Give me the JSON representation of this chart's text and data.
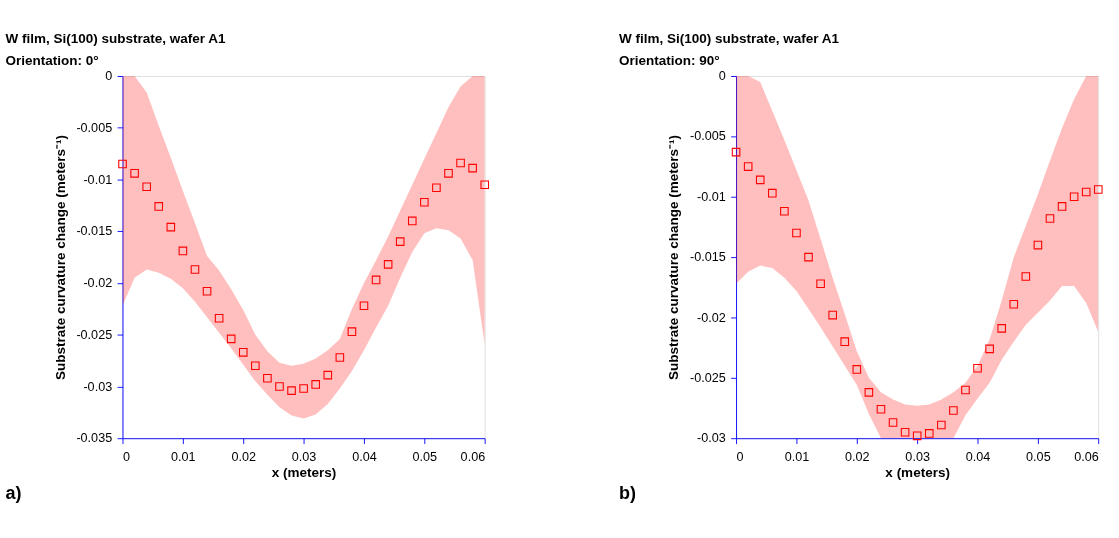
{
  "chart_data": [
    {
      "type": "scatter",
      "title": "W film, Si(100) substrate, wafer A1",
      "subtitle": "Orientation: 0°",
      "xlabel": "x (meters)",
      "ylabel": "Substrate curvature change (meters⁻¹)",
      "annotations": [
        "a)"
      ],
      "x": [
        0,
        0.002,
        0.004,
        0.006,
        0.008,
        0.01,
        0.012,
        0.014,
        0.016,
        0.018,
        0.02,
        0.022,
        0.024,
        0.026,
        0.028,
        0.03,
        0.032,
        0.034,
        0.036,
        0.038,
        0.04,
        0.042,
        0.044,
        0.046,
        0.048,
        0.05,
        0.052,
        0.054,
        0.056,
        0.058,
        0.06
      ],
      "series": [
        {
          "color": "#ff0000",
          "values": [
            -0.0085,
            -0.0094,
            -0.0107,
            -0.0126,
            -0.0146,
            -0.0169,
            -0.0187,
            -0.0208,
            -0.0234,
            -0.0254,
            -0.0267,
            -0.028,
            -0.0292,
            -0.03,
            -0.0304,
            -0.0302,
            -0.0298,
            -0.0289,
            -0.0272,
            -0.0247,
            -0.0222,
            -0.0197,
            -0.0182,
            -0.016,
            -0.014,
            -0.0122,
            -0.0108,
            -0.0094,
            -0.0084,
            -0.0089,
            -0.0105
          ],
          "lower": [
            -0.0222,
            -0.0195,
            -0.0187,
            -0.019,
            -0.0196,
            -0.0205,
            -0.0218,
            -0.0233,
            -0.0248,
            -0.0263,
            -0.0279,
            -0.0295,
            -0.0308,
            -0.032,
            -0.0328,
            -0.0331,
            -0.0327,
            -0.0317,
            -0.0302,
            -0.0285,
            -0.0265,
            -0.0243,
            -0.0222,
            -0.0195,
            -0.017,
            -0.0152,
            -0.0147,
            -0.0149,
            -0.0157,
            -0.0178,
            -0.026
          ],
          "upper": [
            0,
            0,
            -0.0016,
            -0.0048,
            -0.0079,
            -0.0111,
            -0.0142,
            -0.0174,
            -0.0188,
            -0.0206,
            -0.0226,
            -0.025,
            -0.0266,
            -0.0277,
            -0.028,
            -0.0278,
            -0.0273,
            -0.0265,
            -0.0254,
            -0.0225,
            -0.02,
            -0.0178,
            -0.0155,
            -0.013,
            -0.0105,
            -0.008,
            -0.0055,
            -0.003,
            -0.001,
            0,
            0
          ]
        }
      ],
      "xlim": [
        0,
        0.06
      ],
      "xticks": [
        0,
        0.01,
        0.02,
        0.03,
        0.04,
        0.05,
        0.06
      ],
      "ylim": [
        -0.035,
        0
      ],
      "yticks": [
        -0.035,
        -0.03,
        -0.025,
        -0.02,
        -0.015,
        -0.01,
        -0.005,
        0
      ],
      "grid": false,
      "marker": "square"
    },
    {
      "type": "scatter",
      "title": "W film, Si(100) substrate, wafer A1",
      "subtitle": "Orientation: 90°",
      "xlabel": "x (meters)",
      "ylabel": "Substrate curvature change (meters⁻¹)",
      "annotations": [
        "b)"
      ],
      "x": [
        0,
        0.002,
        0.004,
        0.006,
        0.008,
        0.01,
        0.012,
        0.014,
        0.016,
        0.018,
        0.02,
        0.022,
        0.024,
        0.026,
        0.028,
        0.03,
        0.032,
        0.034,
        0.036,
        0.038,
        0.04,
        0.042,
        0.044,
        0.046,
        0.048,
        0.05,
        0.052,
        0.054,
        0.056,
        0.058,
        0.06
      ],
      "series": [
        {
          "color": "#ff0000",
          "values": [
            -0.0063,
            -0.0075,
            -0.0086,
            -0.0097,
            -0.0112,
            -0.013,
            -0.015,
            -0.0172,
            -0.0198,
            -0.022,
            -0.0243,
            -0.0262,
            -0.0276,
            -0.0287,
            -0.0295,
            -0.0298,
            -0.0296,
            -0.0289,
            -0.0277,
            -0.026,
            -0.0242,
            -0.0226,
            -0.0209,
            -0.0189,
            -0.0166,
            -0.014,
            -0.0118,
            -0.0108,
            -0.01,
            -0.0096,
            -0.0094
          ],
          "lower": [
            -0.0172,
            -0.0162,
            -0.0157,
            -0.0159,
            -0.0167,
            -0.0178,
            -0.0193,
            -0.0208,
            -0.0224,
            -0.024,
            -0.0256,
            -0.028,
            -0.03,
            -0.03,
            -0.03,
            -0.03,
            -0.03,
            -0.03,
            -0.03,
            -0.0281,
            -0.0267,
            -0.0254,
            -0.0235,
            -0.022,
            -0.0206,
            -0.0196,
            -0.0186,
            -0.0174,
            -0.0174,
            -0.0188,
            -0.0212
          ],
          "upper": [
            0,
            0,
            -0.0005,
            -0.0029,
            -0.0053,
            -0.0078,
            -0.0103,
            -0.0135,
            -0.0167,
            -0.0197,
            -0.0228,
            -0.025,
            -0.0262,
            -0.0268,
            -0.0272,
            -0.0273,
            -0.0272,
            -0.0268,
            -0.0262,
            -0.0254,
            -0.024,
            -0.0218,
            -0.0186,
            -0.015,
            -0.0124,
            -0.0098,
            -0.007,
            -0.0043,
            -0.0019,
            0,
            0
          ]
        }
      ],
      "xlim": [
        0,
        0.06
      ],
      "xticks": [
        0,
        0.01,
        0.02,
        0.03,
        0.04,
        0.05,
        0.06
      ],
      "ylim": [
        -0.03,
        0
      ],
      "yticks": [
        -0.03,
        -0.025,
        -0.02,
        -0.015,
        -0.01,
        -0.005,
        0
      ],
      "grid": false,
      "marker": "square"
    }
  ]
}
